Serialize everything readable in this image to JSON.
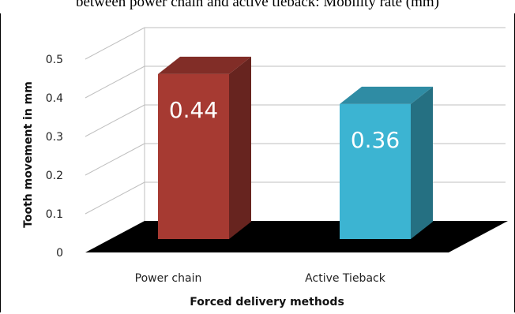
{
  "caption": "between power chain and active tieback: Mobility rate (mm)",
  "chart_data": {
    "type": "bar",
    "categories": [
      "Power chain",
      "Active Tieback"
    ],
    "values": [
      0.44,
      0.36
    ],
    "data_labels": [
      "0.44",
      "0.36"
    ],
    "xlabel": "Forced delivery methods",
    "ylabel": "Tooth movement in mm",
    "ylim": [
      0,
      0.5
    ],
    "yticks": [
      "0",
      "0.1",
      "0.2",
      "0.3",
      "0.4",
      "0.5"
    ],
    "bar_colors": [
      "#a63a32",
      "#3cb4d2"
    ],
    "floor_color": "#000000",
    "grid": true,
    "style": "3d"
  }
}
